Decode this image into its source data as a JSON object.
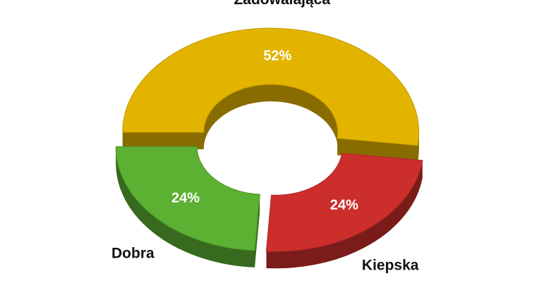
{
  "chart_data": {
    "type": "donut",
    "categories": [
      "Zadowalająca",
      "Kiepska",
      "Dobra"
    ],
    "values": [
      52,
      24,
      24
    ],
    "value_labels": [
      "52%",
      "24%",
      "24%"
    ],
    "colors": [
      "#e2b400",
      "#cc2e2b",
      "#5cb032"
    ]
  }
}
